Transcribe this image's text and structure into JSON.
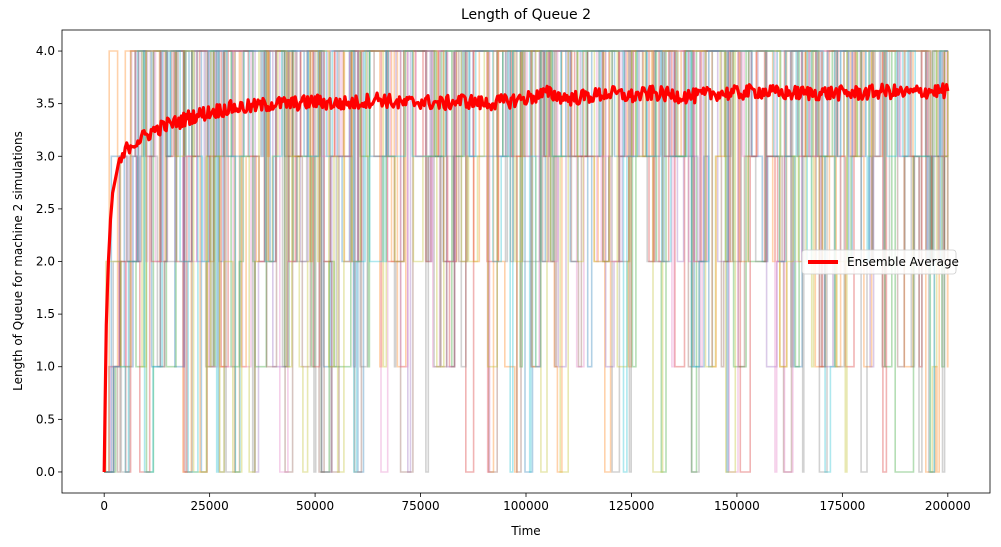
{
  "chart_data": {
    "type": "line",
    "title": "Length of Queue 2",
    "xlabel": "Time",
    "ylabel": "Length of Queue for machine 2 simulations",
    "xlim": [
      -10000,
      210000
    ],
    "ylim": [
      -0.2,
      4.2
    ],
    "xticks": [
      0,
      25000,
      50000,
      75000,
      100000,
      125000,
      150000,
      175000,
      200000
    ],
    "xtick_labels": [
      "0",
      "25000",
      "50000",
      "75000",
      "100000",
      "125000",
      "150000",
      "175000",
      "200000"
    ],
    "yticks": [
      0.0,
      0.5,
      1.0,
      1.5,
      2.0,
      2.5,
      3.0,
      3.5,
      4.0
    ],
    "ytick_labels": [
      "0.0",
      "0.5",
      "1.0",
      "1.5",
      "2.0",
      "2.5",
      "3.0",
      "3.5",
      "4.0"
    ],
    "grid": false,
    "legend_position": "center-right",
    "simulation_series": {
      "description_levels": [
        0,
        1,
        2,
        3,
        4
      ],
      "x_range": [
        0,
        200000
      ],
      "colors": [
        "#1f77b4",
        "#ff7f0e",
        "#2ca02c",
        "#d62728",
        "#9467bd",
        "#8c564b",
        "#e377c2",
        "#7f7f7f",
        "#bcbd22",
        "#17becf"
      ]
    },
    "series": [
      {
        "name": "Ensemble Average",
        "color": "#ff0000",
        "x": [
          0,
          500,
          1000,
          1500,
          2000,
          3000,
          4000,
          5000,
          6000,
          8000,
          10000,
          12000,
          15000,
          18000,
          20000,
          25000,
          30000,
          35000,
          40000,
          45000,
          50000,
          55000,
          60000,
          65000,
          70000,
          75000,
          80000,
          85000,
          90000,
          95000,
          100000,
          105000,
          110000,
          115000,
          120000,
          125000,
          130000,
          135000,
          140000,
          145000,
          150000,
          155000,
          160000,
          165000,
          170000,
          175000,
          180000,
          185000,
          190000,
          195000,
          200000
        ],
        "y": [
          0.0,
          1.4,
          2.0,
          2.4,
          2.65,
          2.85,
          2.95,
          3.05,
          3.1,
          3.15,
          3.2,
          3.25,
          3.3,
          3.33,
          3.37,
          3.42,
          3.46,
          3.47,
          3.5,
          3.5,
          3.52,
          3.5,
          3.51,
          3.55,
          3.5,
          3.52,
          3.5,
          3.53,
          3.5,
          3.52,
          3.55,
          3.6,
          3.55,
          3.57,
          3.6,
          3.57,
          3.6,
          3.58,
          3.57,
          3.6,
          3.6,
          3.62,
          3.6,
          3.6,
          3.6,
          3.6,
          3.6,
          3.62,
          3.6,
          3.62,
          3.62
        ]
      }
    ]
  }
}
